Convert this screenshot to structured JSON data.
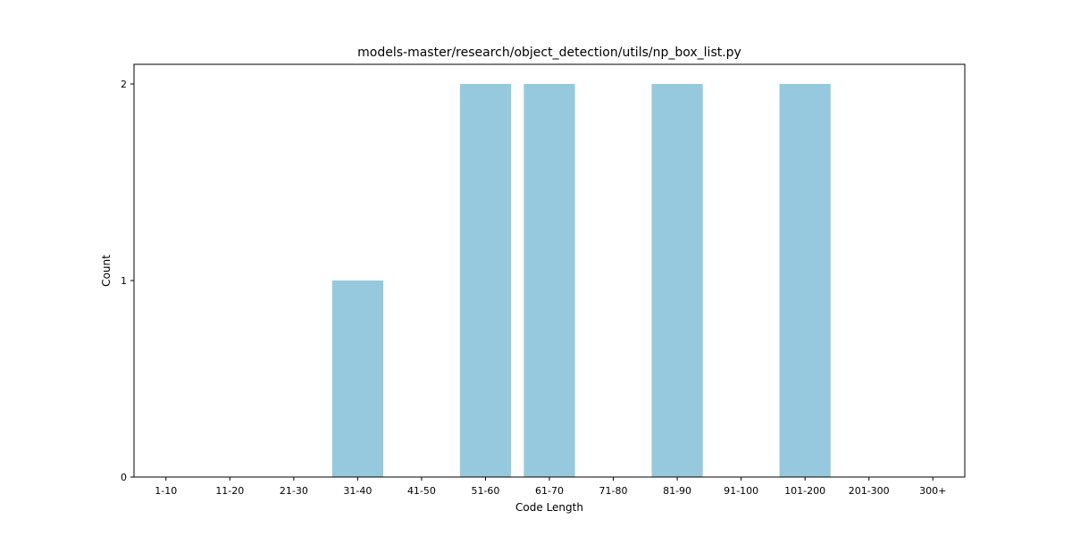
{
  "chart_data": {
    "type": "bar",
    "title": "models-master/research/object_detection/utils/np_box_list.py",
    "xlabel": "Code Length",
    "ylabel": "Count",
    "categories": [
      "1-10",
      "11-20",
      "21-30",
      "31-40",
      "41-50",
      "51-60",
      "61-70",
      "71-80",
      "81-90",
      "91-100",
      "101-200",
      "201-300",
      "300+"
    ],
    "values": [
      0,
      0,
      0,
      1,
      0,
      2,
      2,
      0,
      2,
      0,
      2,
      0,
      0
    ],
    "ylim": [
      0,
      2.1
    ],
    "yticks": [
      0,
      1,
      2
    ],
    "bar_color": "#96c9dd",
    "grid": false,
    "legend": "none"
  }
}
